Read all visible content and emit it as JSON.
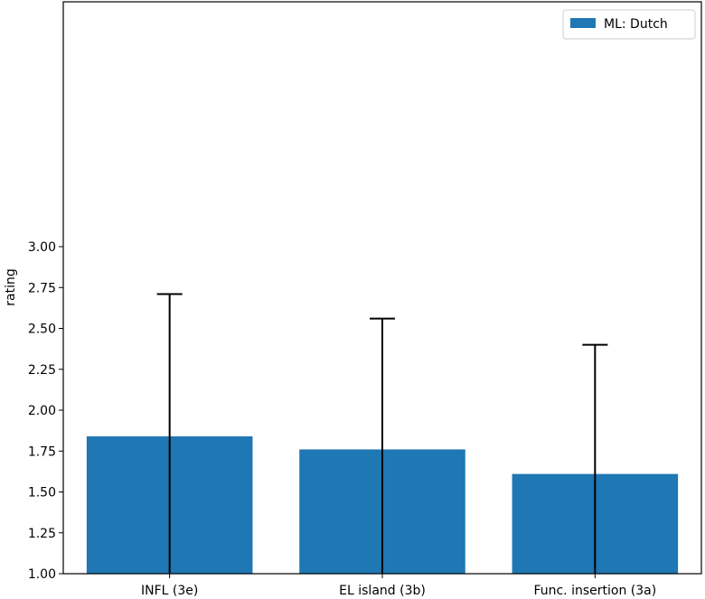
{
  "chart_data": {
    "type": "bar",
    "title": "",
    "xlabel": "",
    "ylabel": "rating",
    "ylim": [
      1.0,
      3.0
    ],
    "yticks": [
      "1.00",
      "1.25",
      "1.50",
      "1.75",
      "2.00",
      "2.25",
      "2.50",
      "2.75",
      "3.00"
    ],
    "categories": [
      "INFL (3e)",
      "EL island (3b)",
      "Func. insertion (3a)"
    ],
    "series": [
      {
        "name": "ML: Dutch",
        "values": [
          1.84,
          1.76,
          1.61
        ],
        "error_upper": [
          2.71,
          2.56,
          2.4
        ],
        "color": "#1f77b4"
      }
    ],
    "error_bars": true,
    "grid": false,
    "legend_position": "top-right"
  }
}
